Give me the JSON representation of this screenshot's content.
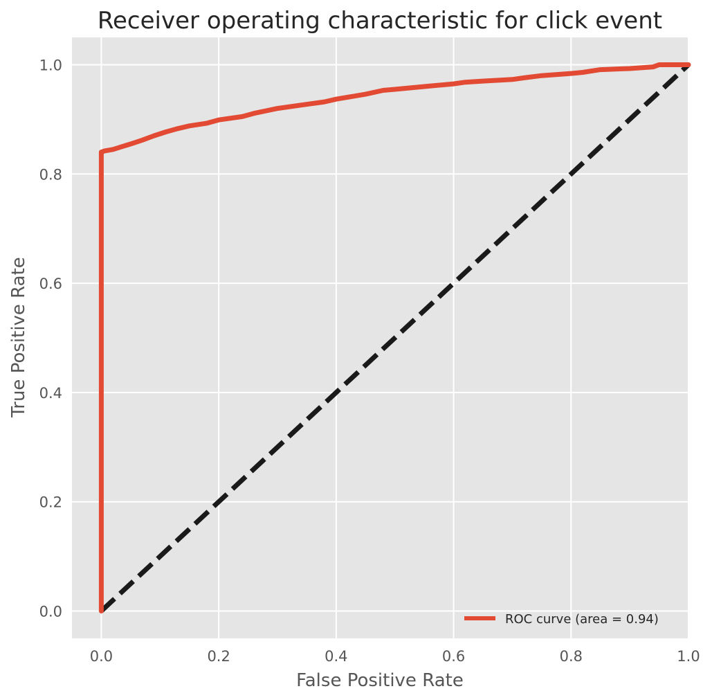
{
  "chart_data": {
    "type": "line",
    "title": "Receiver operating characteristic for click event",
    "xlabel": "False Positive Rate",
    "ylabel": "True Positive Rate",
    "xlim": [
      -0.05,
      1.0
    ],
    "ylim": [
      -0.05,
      1.05
    ],
    "x_ticks": [
      "0.0",
      "0.2",
      "0.4",
      "0.6",
      "0.8",
      "1.0"
    ],
    "y_ticks": [
      "0.0",
      "0.2",
      "0.4",
      "0.6",
      "0.8",
      "1.0"
    ],
    "x_tick_values": [
      0.0,
      0.2,
      0.4,
      0.6,
      0.8,
      1.0
    ],
    "y_tick_values": [
      0.0,
      0.2,
      0.4,
      0.6,
      0.8,
      1.0
    ],
    "grid": true,
    "legend_position": "lower-right",
    "background_color": "#e5e5e5",
    "series": [
      {
        "name": "ROC curve (area = 0.94)",
        "color": "#e24a33",
        "style": "solid",
        "x": [
          0.0,
          0.0,
          0.005,
          0.02,
          0.035,
          0.05,
          0.07,
          0.09,
          0.11,
          0.13,
          0.15,
          0.18,
          0.2,
          0.24,
          0.26,
          0.3,
          0.34,
          0.38,
          0.4,
          0.45,
          0.48,
          0.5,
          0.55,
          0.6,
          0.62,
          0.65,
          0.7,
          0.72,
          0.75,
          0.8,
          0.82,
          0.85,
          0.9,
          0.94,
          0.95,
          1.0
        ],
        "y": [
          0.0,
          0.84,
          0.842,
          0.845,
          0.85,
          0.855,
          0.862,
          0.87,
          0.877,
          0.883,
          0.888,
          0.893,
          0.899,
          0.905,
          0.911,
          0.92,
          0.926,
          0.932,
          0.937,
          0.946,
          0.953,
          0.955,
          0.96,
          0.965,
          0.968,
          0.97,
          0.973,
          0.976,
          0.98,
          0.984,
          0.986,
          0.991,
          0.993,
          0.996,
          1.0,
          1.0
        ]
      },
      {
        "name": "",
        "color": "#1a1a1a",
        "style": "dashed",
        "x": [
          0.0,
          1.0
        ],
        "y": [
          0.0,
          1.0
        ]
      }
    ]
  }
}
